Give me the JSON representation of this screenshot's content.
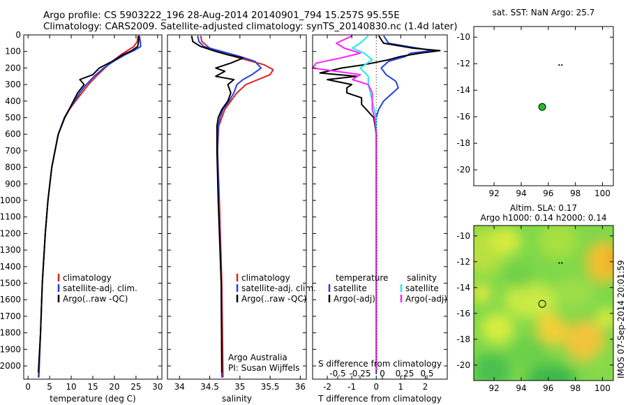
{
  "header": {
    "line1": "Argo profile: CS 5903222_196 28-Aug-2014 20140901_794 15.257S 95.55E",
    "line2": "Climatology: CARS2009. Satellite-adjusted climatology: synTS_20140830.nc (1.4d later)"
  },
  "colors": {
    "clim": "#e02020",
    "sat": "#2040e0",
    "argo": "#000000",
    "sal_sat": "#20e8e8",
    "sal_argo": "#ff20ff",
    "marker": "#20c020"
  },
  "chart_data": [
    {
      "type": "line",
      "id": "temperature",
      "title": "",
      "xlabel": "temperature (deg C)",
      "ylabel": "",
      "xlim": [
        -1,
        31
      ],
      "ylim": [
        2080,
        0
      ],
      "xticks": [
        0,
        5,
        10,
        15,
        20,
        25,
        30
      ],
      "yticks": [
        0,
        100,
        200,
        300,
        400,
        500,
        600,
        700,
        800,
        900,
        1000,
        1100,
        1200,
        1300,
        1400,
        1500,
        1600,
        1700,
        1800,
        1900,
        2000
      ],
      "legend": [
        "climatology",
        "satellite-adj. clim.",
        "Argo(..raw -QC)"
      ],
      "series": [
        {
          "name": "climatology",
          "color": "#e02020",
          "depth": [
            5,
            40,
            70,
            95,
            120,
            160,
            200,
            250,
            300,
            350,
            400,
            450,
            500,
            600,
            800,
            1000,
            1200,
            1500,
            1800,
            2070
          ],
          "values": [
            25.5,
            25.3,
            24.5,
            23,
            21.5,
            19.5,
            17.8,
            15.8,
            14,
            12.5,
            11,
            9.6,
            8.5,
            7,
            5.5,
            4.6,
            4,
            3.3,
            2.9,
            2.4
          ]
        },
        {
          "name": "satellite-adj. clim.",
          "color": "#2040e0",
          "depth": [
            5,
            40,
            70,
            95,
            120,
            160,
            200,
            250,
            300,
            350,
            400,
            450,
            500,
            600,
            800,
            1000,
            1200,
            1500,
            1800,
            2070
          ],
          "values": [
            25.8,
            26,
            26.1,
            24.5,
            22.5,
            19.8,
            17.5,
            15.3,
            13.5,
            12,
            10.8,
            9.5,
            8.4,
            7,
            5.5,
            4.6,
            4,
            3.3,
            2.9,
            2.5
          ]
        },
        {
          "name": "Argo(..raw -QC)",
          "color": "#000000",
          "depth": [
            5,
            40,
            70,
            95,
            120,
            160,
            200,
            240,
            270,
            300,
            350,
            400,
            450,
            500,
            600,
            800,
            1000,
            1200,
            1500,
            1800,
            2040
          ],
          "values": [
            25.6,
            25.6,
            25.4,
            24,
            22,
            19.5,
            16.5,
            15,
            12,
            13,
            11.5,
            10.5,
            9.5,
            8.5,
            7,
            5.5,
            4.6,
            4,
            3.3,
            2.9,
            2.4
          ]
        }
      ]
    },
    {
      "type": "line",
      "id": "salinity",
      "title": "",
      "xlabel": "salinity",
      "ylabel": "",
      "xlim": [
        33.8,
        36.1
      ],
      "ylim": [
        2080,
        0
      ],
      "xticks": [
        34,
        34.5,
        35,
        35.5,
        36
      ],
      "xtick_labels": [
        "34",
        "34.5",
        "35",
        "35.5",
        "36"
      ],
      "legend": [
        "climatology",
        "satellite-adj. clim.",
        "Argo(..raw -QC)"
      ],
      "note": [
        "Argo Australia",
        "PI: Susan Wijffels"
      ],
      "series": [
        {
          "name": "climatology",
          "color": "#e02020",
          "depth": [
            5,
            40,
            80,
            120,
            150,
            180,
            210,
            240,
            270,
            300,
            350,
            400,
            450,
            500,
            550,
            700,
            1000,
            1500,
            2070
          ],
          "values": [
            34.35,
            34.37,
            34.5,
            34.8,
            35.1,
            35.4,
            35.55,
            35.5,
            35.3,
            35.1,
            34.95,
            34.85,
            34.75,
            34.7,
            34.65,
            34.63,
            34.66,
            34.7,
            34.72
          ]
        },
        {
          "name": "satellite-adj. clim.",
          "color": "#2040e0",
          "depth": [
            5,
            40,
            70,
            100,
            130,
            160,
            200,
            240,
            270,
            300,
            350,
            400,
            450,
            500,
            550,
            700,
            1000,
            1500,
            2070
          ],
          "values": [
            34.3,
            34.32,
            34.4,
            34.7,
            35,
            35.25,
            35.35,
            35.2,
            35.05,
            34.95,
            34.9,
            34.82,
            34.72,
            34.67,
            34.64,
            34.63,
            34.65,
            34.69,
            34.7
          ]
        },
        {
          "name": "Argo(..raw -QC)",
          "color": "#000000",
          "depth": [
            5,
            40,
            70,
            100,
            120,
            140,
            170,
            200,
            220,
            250,
            270,
            300,
            350,
            400,
            450,
            500,
            550,
            700,
            1000,
            1500,
            2040
          ],
          "values": [
            34.2,
            34.22,
            34.35,
            34.6,
            34.8,
            35.05,
            34.85,
            34.6,
            34.75,
            34.6,
            34.9,
            34.8,
            34.85,
            34.8,
            34.7,
            34.64,
            34.62,
            34.62,
            34.64,
            34.69,
            34.7
          ]
        }
      ]
    },
    {
      "type": "line",
      "id": "difference",
      "title": "",
      "xlabel": "T difference from climatology",
      "xlabel_top": "S difference from climatology",
      "ylabel": "",
      "xlim": [
        -2.6,
        2.9
      ],
      "ylim": [
        2080,
        0
      ],
      "xticks": [
        -2,
        -1,
        0,
        1,
        2
      ],
      "s_ticks": [
        -0.5,
        -0.25,
        0,
        0.25,
        0.5
      ],
      "s_tick_labels": [
        "-0.5",
        "-0.25",
        "0",
        "0.25",
        "0.5"
      ],
      "legend_temperature": {
        "header": "temperature",
        "items": [
          "satellite",
          "Argo(-adj)"
        ]
      },
      "legend_salinity": {
        "header": "salinity",
        "items": [
          "satellite",
          "Argo(-adj)"
        ]
      },
      "series": [
        {
          "name": "T satellite",
          "color": "#2040e0",
          "depth": [
            5,
            50,
            80,
            95,
            110,
            130,
            160,
            200,
            240,
            280,
            320,
            360,
            400,
            450,
            500,
            550,
            700,
            1000,
            1500,
            2050
          ],
          "values": [
            0.3,
            0.5,
            1.7,
            2.3,
            1.4,
            1.2,
            0.5,
            0.2,
            0.4,
            0.8,
            0.9,
            0.6,
            0.3,
            0.1,
            0,
            0,
            0,
            0,
            0,
            0
          ]
        },
        {
          "name": "T Argo(-adj)",
          "color": "#000000",
          "depth": [
            5,
            50,
            80,
            95,
            110,
            130,
            150,
            180,
            200,
            230,
            250,
            270,
            300,
            320,
            350,
            380,
            420,
            500,
            600,
            800,
            1000,
            1500,
            2030
          ],
          "values": [
            0.1,
            0.3,
            1.5,
            2.6,
            1.8,
            1,
            0.5,
            -0.5,
            -1.4,
            -2.3,
            -0.8,
            -2,
            -1,
            -1.2,
            -1.2,
            -0.6,
            -0.6,
            -0.1,
            0,
            0,
            0,
            0,
            0
          ]
        },
        {
          "name": "S satellite",
          "color": "#20e8e8",
          "depth": [
            5,
            50,
            80,
            110,
            150,
            200,
            250,
            300,
            400,
            500,
            600,
            800,
            1000,
            1500,
            2030
          ],
          "values": [
            -0.1,
            -0.2,
            -0.3,
            -0.15,
            -0.05,
            -0.2,
            -0.1,
            -0.1,
            -0.05,
            0,
            0,
            0,
            0,
            0,
            0
          ]
        },
        {
          "name": "S Argo(-adj)",
          "color": "#ff20ff",
          "depth": [
            5,
            50,
            80,
            110,
            140,
            170,
            200,
            240,
            270,
            300,
            350,
            400,
            450,
            500,
            600,
            800,
            1000,
            1500,
            2030
          ],
          "values": [
            -0.3,
            -0.5,
            -0.4,
            -0.2,
            -0.45,
            -0.75,
            -0.8,
            -0.2,
            -0.3,
            -0.1,
            -0.05,
            -0.05,
            -0.05,
            -0.02,
            0,
            0,
            0,
            0,
            0
          ]
        }
      ]
    },
    {
      "type": "scatter",
      "id": "sst_map",
      "title": "sat. SST: NaN Argo: 25.7",
      "xlim": [
        90.5,
        100.8
      ],
      "ylim": [
        -21.2,
        -9.2
      ],
      "xticks": [
        92,
        94,
        96,
        98,
        100
      ],
      "yticks": [
        -10,
        -12,
        -14,
        -16,
        -18,
        -20
      ],
      "points": [
        {
          "x": 95.55,
          "y": -15.26,
          "label": "argo float"
        }
      ],
      "marks": [
        {
          "x": 96.8,
          "y": -12.1
        },
        {
          "x": 97,
          "y": -12.1
        }
      ]
    },
    {
      "type": "heatmap",
      "id": "sla_map",
      "title_line1": "Altim. SLA: 0.17",
      "title_line2": "Argo h1000: 0.14 h2000: 0.14",
      "xlim": [
        90.5,
        100.8
      ],
      "ylim": [
        -21.2,
        -9.2
      ],
      "xticks": [
        92,
        94,
        96,
        98,
        100
      ],
      "yticks": [
        -10,
        -12,
        -14,
        -16,
        -18,
        -20
      ],
      "points": [
        {
          "x": 95.55,
          "y": -15.26,
          "label": "argo float"
        }
      ],
      "marks": [
        {
          "x": 96.8,
          "y": -12.1
        },
        {
          "x": 97,
          "y": -12.1
        }
      ],
      "side_label": "IMOS 07-Sep-2014 20:01:59"
    }
  ]
}
